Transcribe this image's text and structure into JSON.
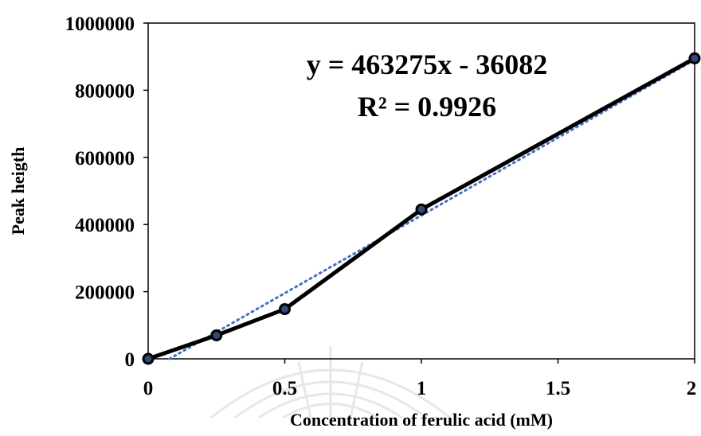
{
  "chart_data": {
    "type": "line",
    "xlabel": "Concentration of ferulic acid (mM)",
    "ylabel": "Peak heigth",
    "xlim": [
      0,
      2
    ],
    "ylim": [
      0,
      1000000
    ],
    "x_ticks": [
      "0",
      "0.5",
      "1",
      "1.5",
      "2"
    ],
    "y_ticks": [
      "0",
      "200000",
      "400000",
      "600000",
      "800000",
      "1000000"
    ],
    "grid": false,
    "legend": "none",
    "series": [
      {
        "x": [
          0,
          0.25,
          0.5,
          1,
          2
        ],
        "y": [
          0,
          70000,
          148000,
          445000,
          895000
        ],
        "color": "#000000",
        "marker": "circle",
        "marker_color": "#2e4a7a"
      }
    ],
    "trendline": {
      "type": "linear",
      "slope": 463275,
      "intercept": -36082,
      "color": "#4472c4",
      "style": "dotted"
    },
    "annotations": [
      "y = 463275x - 36082",
      "R² = 0.9926"
    ]
  }
}
